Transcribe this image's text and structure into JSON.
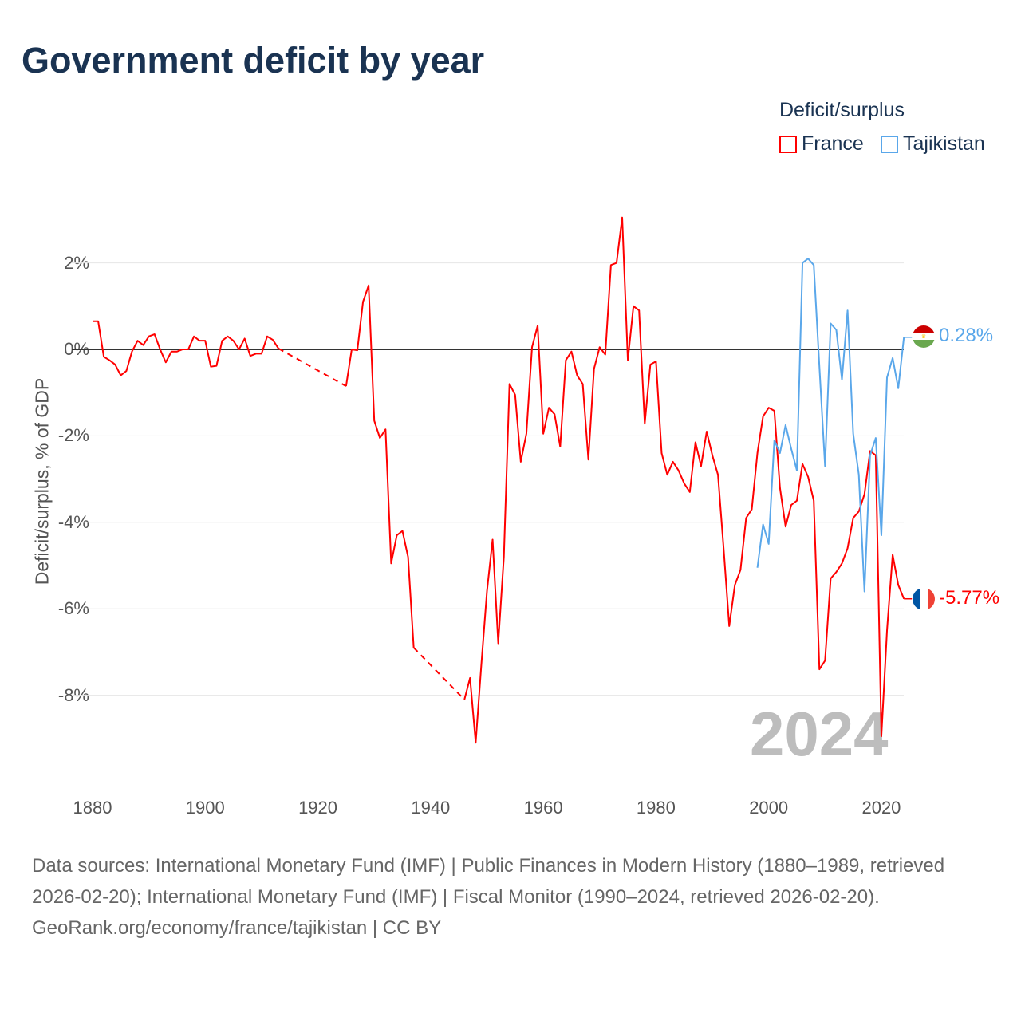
{
  "title": "Government deficit by year",
  "legend": {
    "title": "Deficit/surplus",
    "items": [
      {
        "label": "France",
        "color": "#ff0000"
      },
      {
        "label": "Tajikistan",
        "color": "#5aa7ea"
      }
    ]
  },
  "current_year": "2024",
  "end_labels": {
    "tajikistan": "0.28%",
    "france": "-5.77%"
  },
  "footer": {
    "sources": "Data sources: International Monetary Fund (IMF) | Public Finances in Modern History (1880–1989, retrieved 2026-02-20); International Monetary Fund (IMF) | Fiscal Monitor (1990–2024, retrieved 2026-02-20).",
    "credit": "GeoRank.org/economy/france/tajikistan | CC BY"
  },
  "chart_data": {
    "type": "line",
    "title": "Government deficit by year",
    "xlabel": "",
    "ylabel": "Deficit/surplus, % of GDP",
    "xlim": [
      1880,
      2024
    ],
    "ylim": [
      -9.6,
      3.1
    ],
    "xticks": [
      "1880",
      "1900",
      "1920",
      "1940",
      "1960",
      "1980",
      "2000",
      "2020"
    ],
    "yticks": [
      {
        "v": 2,
        "label": "2%"
      },
      {
        "v": 0,
        "label": "0%"
      },
      {
        "v": -2,
        "label": "-2%"
      },
      {
        "v": -4,
        "label": "-4%"
      },
      {
        "v": -6,
        "label": "-6%"
      },
      {
        "v": -8,
        "label": "-8%"
      }
    ],
    "legend_position": "top-right",
    "series": [
      {
        "name": "France",
        "color": "#ff0000",
        "points": [
          [
            1880,
            0.65
          ],
          [
            1881,
            0.65
          ],
          [
            1882,
            -0.17
          ],
          [
            1883,
            -0.25
          ],
          [
            1884,
            -0.35
          ],
          [
            1885,
            -0.6
          ],
          [
            1886,
            -0.5
          ],
          [
            1887,
            -0.05
          ],
          [
            1888,
            0.2
          ],
          [
            1889,
            0.1
          ],
          [
            1890,
            0.3
          ],
          [
            1891,
            0.35
          ],
          [
            1892,
            0.0
          ],
          [
            1893,
            -0.3
          ],
          [
            1894,
            -0.05
          ],
          [
            1895,
            -0.05
          ],
          [
            1896,
            0.0
          ],
          [
            1897,
            0.0
          ],
          [
            1898,
            0.3
          ],
          [
            1899,
            0.2
          ],
          [
            1900,
            0.2
          ],
          [
            1901,
            -0.4
          ],
          [
            1902,
            -0.38
          ],
          [
            1903,
            0.2
          ],
          [
            1904,
            0.3
          ],
          [
            1905,
            0.2
          ],
          [
            1906,
            0.0
          ],
          [
            1907,
            0.25
          ],
          [
            1908,
            -0.15
          ],
          [
            1909,
            -0.1
          ],
          [
            1910,
            -0.1
          ],
          [
            1911,
            0.3
          ],
          [
            1912,
            0.22
          ],
          [
            1913,
            0.02
          ],
          [
            1925,
            -0.85
          ],
          [
            1926,
            0.0
          ],
          [
            1927,
            -0.02
          ],
          [
            1928,
            1.1
          ],
          [
            1929,
            1.48
          ],
          [
            1930,
            -1.65
          ],
          [
            1931,
            -2.05
          ],
          [
            1932,
            -1.85
          ],
          [
            1933,
            -4.95
          ],
          [
            1934,
            -4.3
          ],
          [
            1935,
            -4.2
          ],
          [
            1936,
            -4.8
          ],
          [
            1937,
            -6.9
          ],
          [
            1946,
            -8.1
          ],
          [
            1947,
            -7.6
          ],
          [
            1948,
            -9.1
          ],
          [
            1949,
            -7.3
          ],
          [
            1950,
            -5.6
          ],
          [
            1951,
            -4.4
          ],
          [
            1952,
            -6.8
          ],
          [
            1953,
            -4.8
          ],
          [
            1954,
            -0.8
          ],
          [
            1955,
            -1.05
          ],
          [
            1956,
            -2.6
          ],
          [
            1957,
            -1.95
          ],
          [
            1958,
            0.05
          ],
          [
            1959,
            0.55
          ],
          [
            1960,
            -1.95
          ],
          [
            1961,
            -1.35
          ],
          [
            1962,
            -1.5
          ],
          [
            1963,
            -2.25
          ],
          [
            1964,
            -0.25
          ],
          [
            1965,
            -0.05
          ],
          [
            1966,
            -0.6
          ],
          [
            1967,
            -0.8
          ],
          [
            1968,
            -2.55
          ],
          [
            1969,
            -0.45
          ],
          [
            1970,
            0.05
          ],
          [
            1971,
            -0.12
          ],
          [
            1972,
            1.95
          ],
          [
            1973,
            2.0
          ],
          [
            1974,
            3.05
          ],
          [
            1975,
            -0.25
          ],
          [
            1976,
            1.0
          ],
          [
            1977,
            0.9
          ],
          [
            1978,
            -1.72
          ],
          [
            1979,
            -0.35
          ],
          [
            1980,
            -0.28
          ],
          [
            1981,
            -2.4
          ],
          [
            1982,
            -2.9
          ],
          [
            1983,
            -2.6
          ],
          [
            1984,
            -2.8
          ],
          [
            1985,
            -3.1
          ],
          [
            1986,
            -3.3
          ],
          [
            1987,
            -2.15
          ],
          [
            1988,
            -2.7
          ],
          [
            1989,
            -1.9
          ],
          [
            1990,
            -2.45
          ],
          [
            1991,
            -2.9
          ],
          [
            1992,
            -4.6
          ],
          [
            1993,
            -6.4
          ],
          [
            1994,
            -5.45
          ],
          [
            1995,
            -5.1
          ],
          [
            1996,
            -3.9
          ],
          [
            1997,
            -3.7
          ],
          [
            1998,
            -2.4
          ],
          [
            1999,
            -1.55
          ],
          [
            2000,
            -1.35
          ],
          [
            2001,
            -1.42
          ],
          [
            2002,
            -3.2
          ],
          [
            2003,
            -4.1
          ],
          [
            2004,
            -3.6
          ],
          [
            2005,
            -3.5
          ],
          [
            2006,
            -2.65
          ],
          [
            2007,
            -2.95
          ],
          [
            2008,
            -3.5
          ],
          [
            2009,
            -7.4
          ],
          [
            2010,
            -7.2
          ],
          [
            2011,
            -5.3
          ],
          [
            2012,
            -5.15
          ],
          [
            2013,
            -4.95
          ],
          [
            2014,
            -4.6
          ],
          [
            2015,
            -3.9
          ],
          [
            2016,
            -3.75
          ],
          [
            2017,
            -3.35
          ],
          [
            2018,
            -2.35
          ],
          [
            2019,
            -2.45
          ],
          [
            2020,
            -8.95
          ],
          [
            2021,
            -6.5
          ],
          [
            2022,
            -4.75
          ],
          [
            2023,
            -5.45
          ],
          [
            2024,
            -5.77
          ]
        ]
      },
      {
        "name": "Tajikistan",
        "color": "#5aa7ea",
        "points": [
          [
            1998,
            -5.05
          ],
          [
            1999,
            -4.05
          ],
          [
            2000,
            -4.5
          ],
          [
            2001,
            -2.1
          ],
          [
            2002,
            -2.4
          ],
          [
            2003,
            -1.75
          ],
          [
            2004,
            -2.3
          ],
          [
            2005,
            -2.8
          ],
          [
            2006,
            2.0
          ],
          [
            2007,
            2.1
          ],
          [
            2008,
            1.95
          ],
          [
            2009,
            -0.4
          ],
          [
            2010,
            -2.7
          ],
          [
            2011,
            0.6
          ],
          [
            2012,
            0.45
          ],
          [
            2013,
            -0.7
          ],
          [
            2014,
            0.9
          ],
          [
            2015,
            -1.95
          ],
          [
            2016,
            -2.9
          ],
          [
            2017,
            -5.6
          ],
          [
            2018,
            -2.45
          ],
          [
            2019,
            -2.05
          ],
          [
            2020,
            -4.3
          ],
          [
            2021,
            -0.65
          ],
          [
            2022,
            -0.2
          ],
          [
            2023,
            -0.9
          ],
          [
            2024,
            0.28
          ]
        ]
      }
    ]
  }
}
